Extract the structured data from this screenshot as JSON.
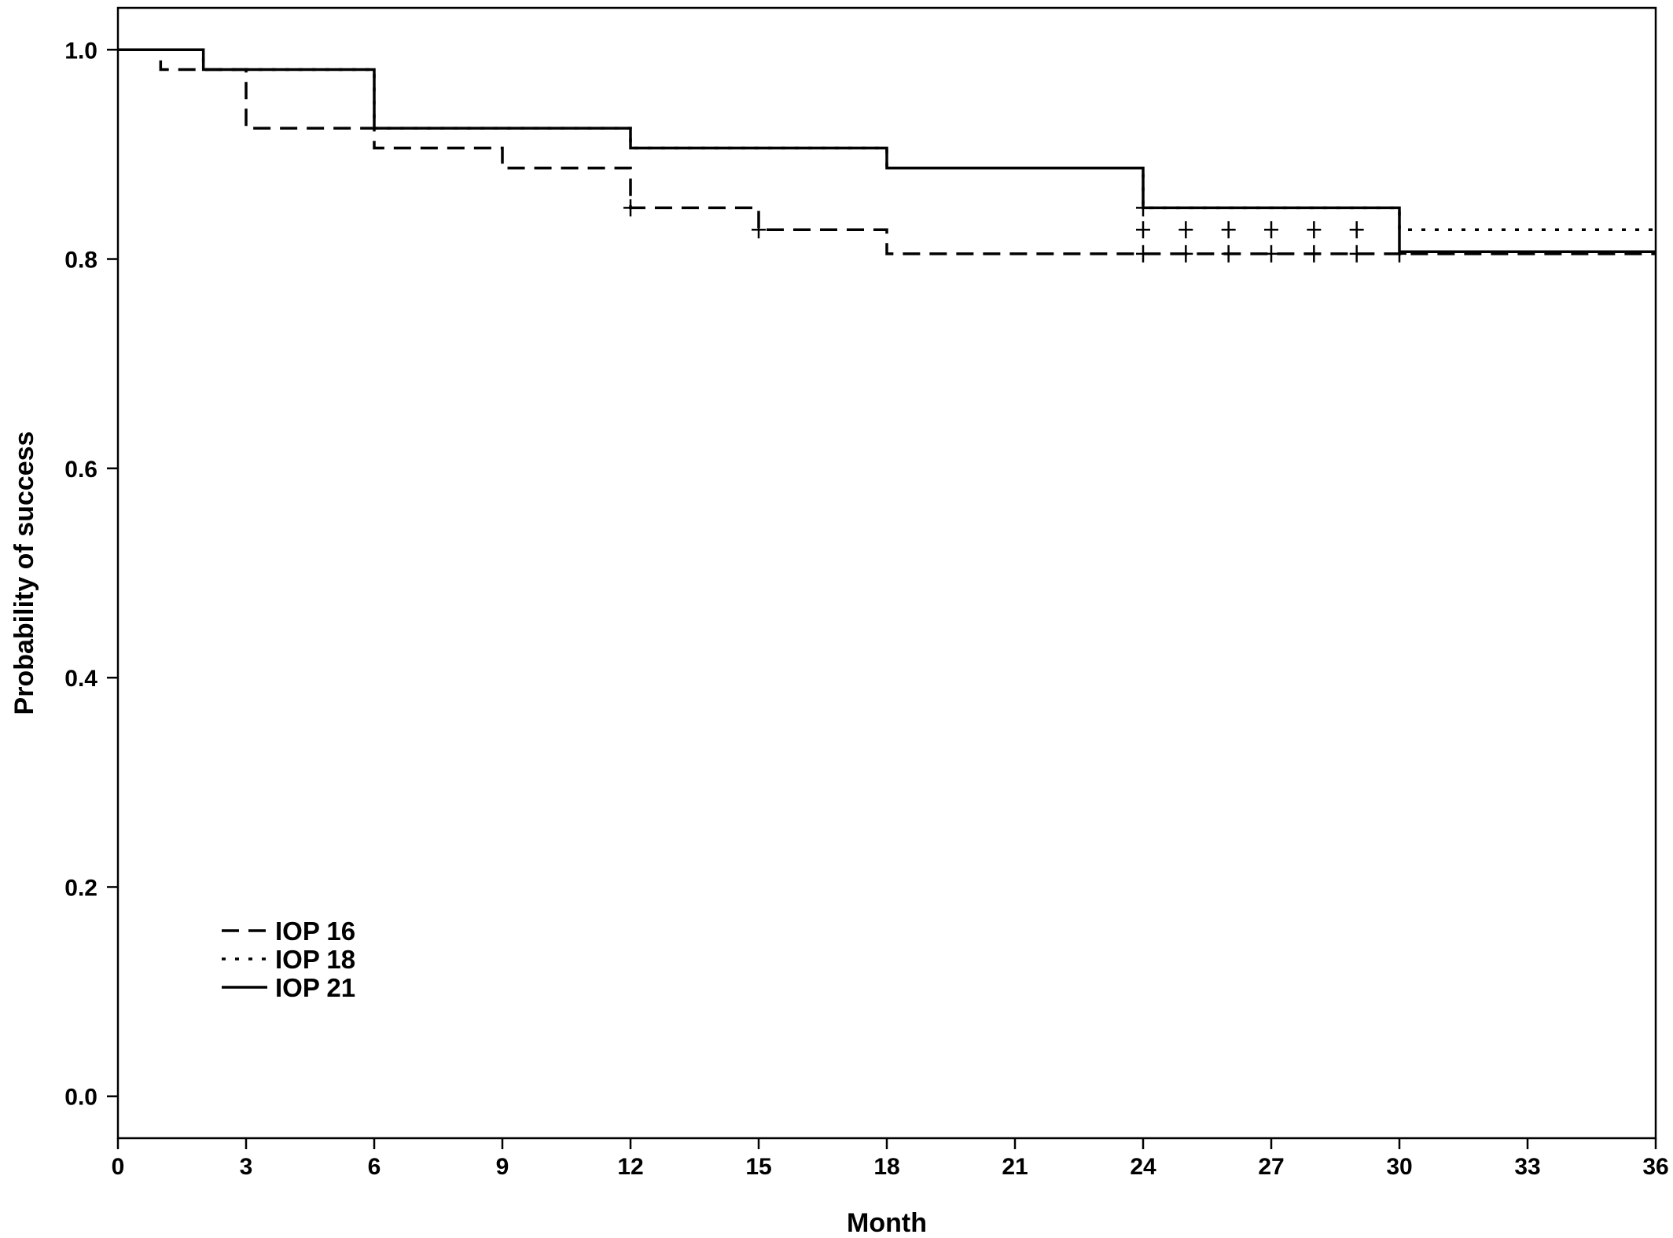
{
  "chart_data": {
    "type": "line",
    "step": true,
    "xlabel": "Month",
    "ylabel": "Probability of success",
    "xlim": [
      0,
      36
    ],
    "ylim": [
      -0.04,
      1.04
    ],
    "xticks": [
      0,
      3,
      6,
      9,
      12,
      15,
      18,
      21,
      24,
      27,
      30,
      33,
      36
    ],
    "yticks": [
      0.0,
      0.2,
      0.4,
      0.6,
      0.8,
      1.0
    ],
    "xtick_labels": [
      "0",
      "3",
      "6",
      "9",
      "12",
      "15",
      "18",
      "21",
      "24",
      "27",
      "30",
      "33",
      "36"
    ],
    "ytick_labels": [
      "0.0",
      "0.2",
      "0.4",
      "0.6",
      "0.8",
      "1.0"
    ],
    "grid": false,
    "legend_position": "bottom-left",
    "series": [
      {
        "name": "IOP 16",
        "style": "dashed",
        "steps": [
          [
            0,
            1.0
          ],
          [
            1,
            0.981
          ],
          [
            3,
            0.925
          ],
          [
            6,
            0.906
          ],
          [
            9,
            0.887
          ],
          [
            12,
            0.849
          ],
          [
            15,
            0.828
          ],
          [
            18,
            0.805
          ],
          [
            36,
            0.805
          ]
        ],
        "censored": [
          [
            12,
            0.849
          ],
          [
            15,
            0.828
          ],
          [
            24,
            0.805
          ],
          [
            25,
            0.805
          ],
          [
            26,
            0.805
          ],
          [
            27,
            0.805
          ],
          [
            28,
            0.805
          ],
          [
            29,
            0.805
          ],
          [
            30,
            0.805
          ]
        ]
      },
      {
        "name": "IOP 18",
        "style": "dotted",
        "steps": [
          [
            0,
            1.0
          ],
          [
            2,
            0.981
          ],
          [
            6,
            0.925
          ],
          [
            12,
            0.906
          ],
          [
            18,
            0.887
          ],
          [
            24,
            0.849
          ],
          [
            30,
            0.828
          ],
          [
            36,
            0.828
          ]
        ],
        "censored": [
          [
            24,
            0.828
          ],
          [
            25,
            0.828
          ],
          [
            26,
            0.828
          ],
          [
            27,
            0.828
          ],
          [
            28,
            0.828
          ],
          [
            29,
            0.828
          ]
        ]
      },
      {
        "name": "IOP 21",
        "style": "solid",
        "steps": [
          [
            0,
            1.0
          ],
          [
            2,
            0.981
          ],
          [
            6,
            0.925
          ],
          [
            12,
            0.906
          ],
          [
            18,
            0.887
          ],
          [
            24,
            0.849
          ],
          [
            30,
            0.807
          ],
          [
            36,
            0.807
          ]
        ],
        "censored": [
          [
            24,
            0.849
          ]
        ]
      }
    ]
  },
  "colors": {
    "line": "#000000",
    "background": "#ffffff"
  }
}
